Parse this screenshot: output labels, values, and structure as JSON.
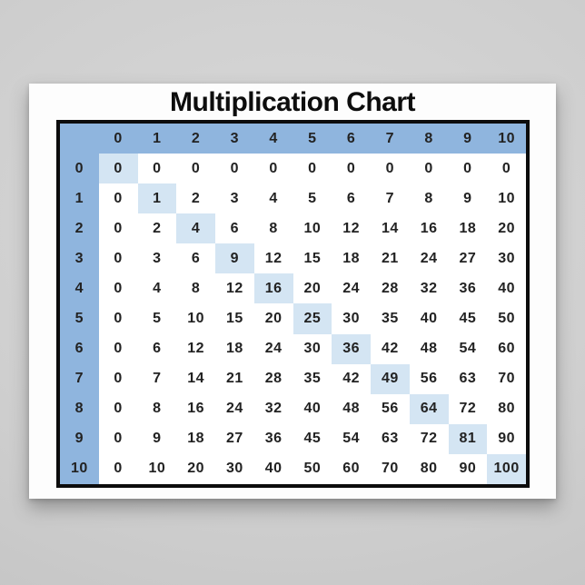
{
  "title": "Multiplication Chart",
  "colors": {
    "header_blue": "#8fb5de",
    "diagonal_highlight_blue": "#d4e5f3",
    "table_border": "#0c0c0c",
    "cell_text": "#222222",
    "poster_white": "#fdfdfd",
    "backdrop_gray": "#cecece"
  },
  "chart_data": {
    "type": "table",
    "title": "Multiplication Chart",
    "corner_label": "",
    "column_headers": [
      "0",
      "1",
      "2",
      "3",
      "4",
      "5",
      "6",
      "7",
      "8",
      "9",
      "10"
    ],
    "row_headers": [
      "0",
      "1",
      "2",
      "3",
      "4",
      "5",
      "6",
      "7",
      "8",
      "9",
      "10"
    ],
    "rows": [
      {
        "header": "0",
        "values": [
          "0",
          "0",
          "0",
          "0",
          "0",
          "0",
          "0",
          "0",
          "0",
          "0",
          "0"
        ]
      },
      {
        "header": "1",
        "values": [
          "0",
          "1",
          "2",
          "3",
          "4",
          "5",
          "6",
          "7",
          "8",
          "9",
          "10"
        ]
      },
      {
        "header": "2",
        "values": [
          "0",
          "2",
          "4",
          "6",
          "8",
          "10",
          "12",
          "14",
          "16",
          "18",
          "20"
        ]
      },
      {
        "header": "3",
        "values": [
          "0",
          "3",
          "6",
          "9",
          "12",
          "15",
          "18",
          "21",
          "24",
          "27",
          "30"
        ]
      },
      {
        "header": "4",
        "values": [
          "0",
          "4",
          "8",
          "12",
          "16",
          "20",
          "24",
          "28",
          "32",
          "36",
          "40"
        ]
      },
      {
        "header": "5",
        "values": [
          "0",
          "5",
          "10",
          "15",
          "20",
          "25",
          "30",
          "35",
          "40",
          "45",
          "50"
        ]
      },
      {
        "header": "6",
        "values": [
          "0",
          "6",
          "12",
          "18",
          "24",
          "30",
          "36",
          "42",
          "48",
          "54",
          "60"
        ]
      },
      {
        "header": "7",
        "values": [
          "0",
          "7",
          "14",
          "21",
          "28",
          "35",
          "42",
          "49",
          "56",
          "63",
          "70"
        ]
      },
      {
        "header": "8",
        "values": [
          "0",
          "8",
          "16",
          "24",
          "32",
          "40",
          "48",
          "56",
          "64",
          "72",
          "80"
        ]
      },
      {
        "header": "9",
        "values": [
          "0",
          "9",
          "18",
          "27",
          "36",
          "45",
          "54",
          "63",
          "72",
          "81",
          "90"
        ]
      },
      {
        "header": "10",
        "values": [
          "0",
          "10",
          "20",
          "30",
          "40",
          "50",
          "60",
          "70",
          "80",
          "90",
          "100"
        ]
      }
    ],
    "highlight_rule": "diagonal squares (row index == column index) highlighted in light blue",
    "layout": {
      "grid_lines": false,
      "header_row": true,
      "header_column": true
    }
  }
}
